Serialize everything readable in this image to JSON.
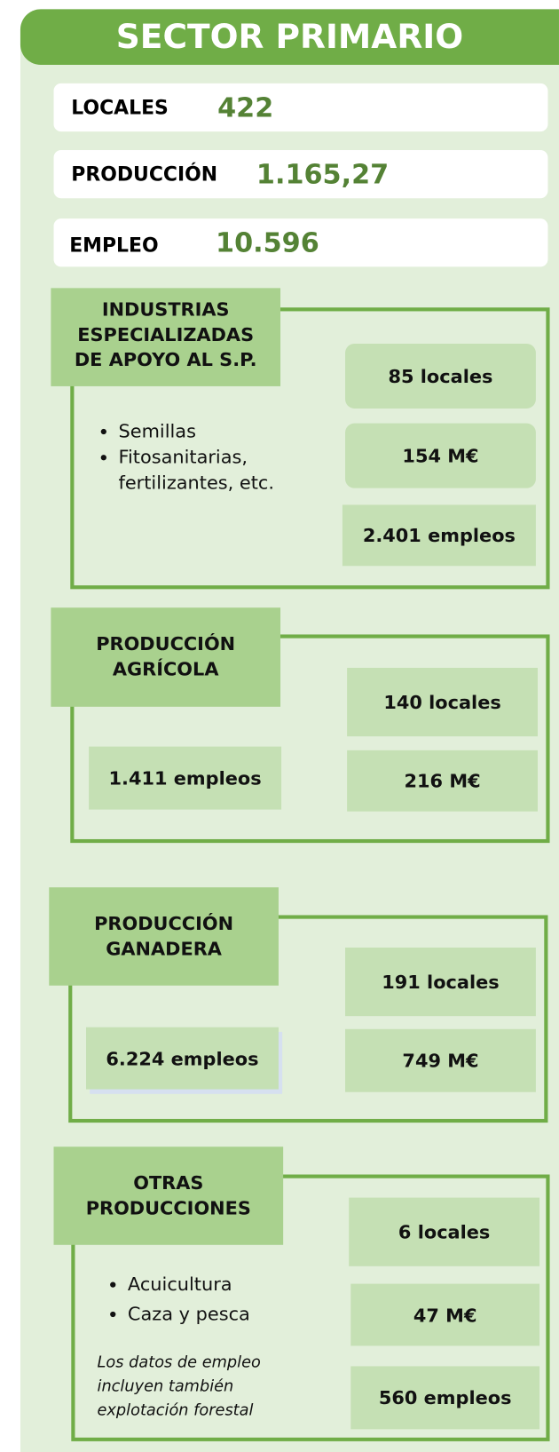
{
  "header": {
    "title": "SECTOR PRIMARIO"
  },
  "summary": [
    {
      "label": "LOCALES",
      "value": "422"
    },
    {
      "label": "PRODUCCIÓN",
      "value": "1.165,27"
    },
    {
      "label": "EMPLEO",
      "value": "10.596"
    }
  ],
  "sections": [
    {
      "title_lines": [
        "INDUSTRIAS",
        "ESPECIALIZADAS",
        "DE APOYO AL S.P."
      ],
      "bullets": [
        "Semillas",
        "Fitosanitarias, fertilizantes, etc."
      ],
      "stats": [
        "85 locales",
        "154 M€",
        "2.401 empleos"
      ]
    },
    {
      "title_lines": [
        "PRODUCCIÓN",
        "AGRÍCOLA"
      ],
      "stats": [
        "140 locales",
        "216 M€",
        "1.411 empleos"
      ]
    },
    {
      "title_lines": [
        "PRODUCCIÓN",
        "GANADERA"
      ],
      "stats": [
        "191 locales",
        "749 M€",
        "6.224 empleos"
      ]
    },
    {
      "title_lines": [
        "OTRAS",
        "PRODUCCIONES"
      ],
      "bullets": [
        "Acuicultura",
        "Caza y pesca"
      ],
      "note_lines": [
        "Los datos de empleo",
        "incluyen también",
        "explotación forestal"
      ],
      "stats": [
        "6 locales",
        "47 M€",
        "560 empleos"
      ]
    }
  ]
}
